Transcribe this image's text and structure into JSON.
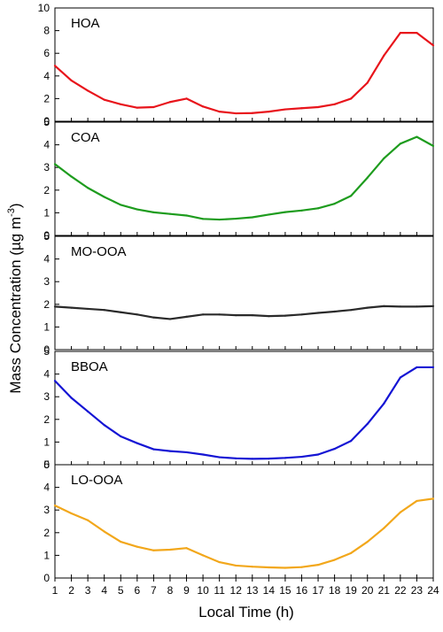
{
  "chart_data": {
    "type": "line",
    "xlabel": "Local Time (h)",
    "ylabel_main": "Mass Concentration (µg m",
    "ylabel_sup": "-3",
    "ylabel_close": ")",
    "x": [
      1,
      2,
      3,
      4,
      5,
      6,
      7,
      8,
      9,
      10,
      11,
      12,
      13,
      14,
      15,
      16,
      17,
      18,
      19,
      20,
      21,
      22,
      23,
      24
    ],
    "xlim": [
      1,
      24
    ],
    "panels": [
      {
        "name": "HOA",
        "color": "#e8141b",
        "ylim": [
          0,
          10
        ],
        "yticks": [
          0,
          2,
          4,
          6,
          8,
          10
        ],
        "values": [
          4.9,
          3.6,
          2.7,
          1.9,
          1.5,
          1.2,
          1.25,
          1.7,
          2.0,
          1.3,
          0.85,
          0.7,
          0.72,
          0.85,
          1.05,
          1.15,
          1.25,
          1.5,
          2.0,
          3.4,
          5.8,
          7.8,
          7.8,
          6.7
        ]
      },
      {
        "name": "COA",
        "color": "#1e9c1e",
        "ylim": [
          0,
          5
        ],
        "yticks": [
          0,
          1,
          2,
          3,
          4,
          5
        ],
        "values": [
          3.15,
          2.6,
          2.1,
          1.7,
          1.35,
          1.15,
          1.02,
          0.95,
          0.88,
          0.73,
          0.7,
          0.74,
          0.8,
          0.92,
          1.03,
          1.1,
          1.2,
          1.4,
          1.75,
          2.55,
          3.4,
          4.05,
          4.35,
          3.95
        ]
      },
      {
        "name": "MO-OOA",
        "color": "#2a2a2a",
        "ylim": [
          0,
          5
        ],
        "yticks": [
          0,
          1,
          2,
          3,
          4,
          5
        ],
        "values": [
          1.9,
          1.85,
          1.8,
          1.75,
          1.65,
          1.55,
          1.42,
          1.35,
          1.45,
          1.55,
          1.55,
          1.52,
          1.52,
          1.48,
          1.5,
          1.55,
          1.62,
          1.68,
          1.75,
          1.85,
          1.92,
          1.9,
          1.9,
          1.92
        ]
      },
      {
        "name": "BBOA",
        "color": "#1414d4",
        "ylim": [
          0,
          5
        ],
        "yticks": [
          0,
          1,
          2,
          3,
          4,
          5
        ],
        "values": [
          3.7,
          2.95,
          2.35,
          1.75,
          1.25,
          0.95,
          0.68,
          0.6,
          0.55,
          0.45,
          0.33,
          0.28,
          0.26,
          0.27,
          0.3,
          0.35,
          0.45,
          0.7,
          1.05,
          1.8,
          2.7,
          3.85,
          4.3,
          4.3
        ]
      },
      {
        "name": "LO-OOA",
        "color": "#f2a71b",
        "ylim": [
          0,
          5
        ],
        "yticks": [
          0,
          1,
          2,
          3,
          4,
          5
        ],
        "values": [
          3.2,
          2.85,
          2.55,
          2.05,
          1.6,
          1.38,
          1.22,
          1.25,
          1.32,
          1.0,
          0.7,
          0.55,
          0.5,
          0.47,
          0.45,
          0.48,
          0.58,
          0.8,
          1.1,
          1.6,
          2.2,
          2.9,
          3.4,
          3.5
        ]
      }
    ]
  }
}
